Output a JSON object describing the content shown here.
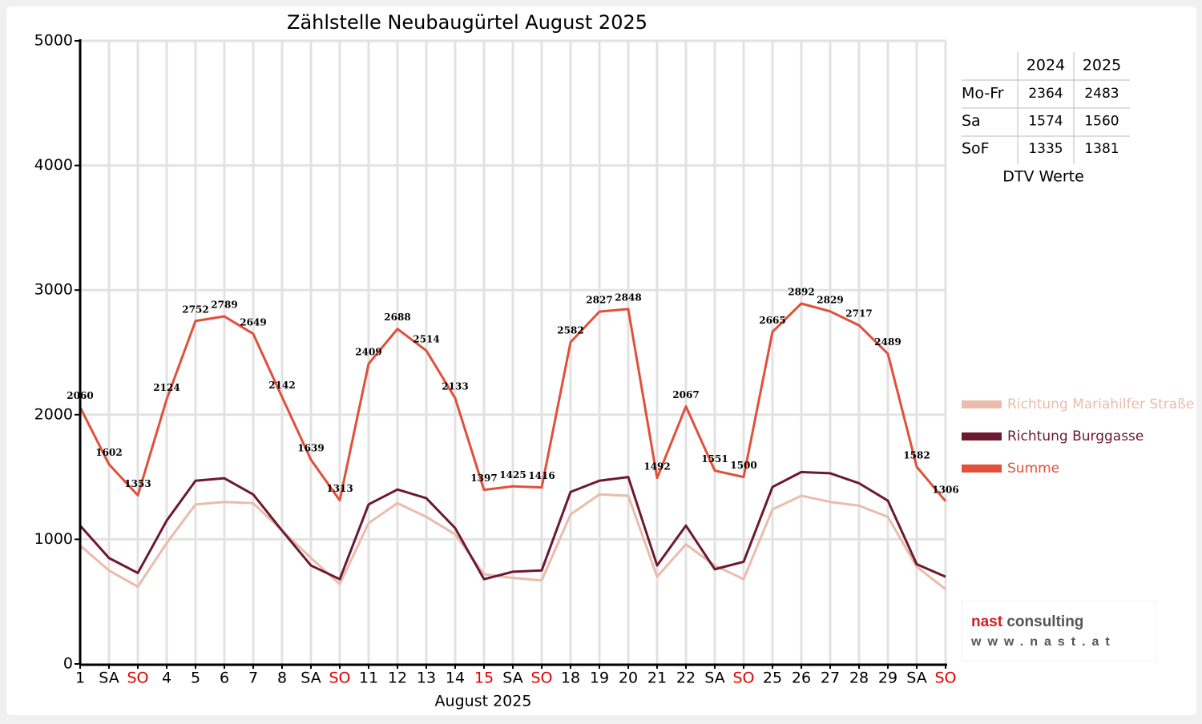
{
  "chart_data": {
    "type": "line",
    "title": "Zählstelle Neubaugürtel August 2025",
    "x_label": "August 2025",
    "categories": [
      "1",
      "SA",
      "SO",
      "4",
      "5",
      "6",
      "7",
      "8",
      "SA",
      "SO",
      "11",
      "12",
      "13",
      "14",
      "15",
      "SA",
      "SO",
      "18",
      "19",
      "20",
      "21",
      "22",
      "SA",
      "SO",
      "25",
      "26",
      "27",
      "28",
      "29",
      "SA",
      "SO"
    ],
    "category_colors": [
      "#000000",
      "#000000",
      "#e00000",
      "#000000",
      "#000000",
      "#000000",
      "#000000",
      "#000000",
      "#000000",
      "#e00000",
      "#000000",
      "#000000",
      "#000000",
      "#000000",
      "#e00000",
      "#000000",
      "#e00000",
      "#000000",
      "#000000",
      "#000000",
      "#000000",
      "#000000",
      "#000000",
      "#e00000",
      "#000000",
      "#000000",
      "#000000",
      "#000000",
      "#000000",
      "#000000",
      "#e00000"
    ],
    "ylim": [
      0,
      5000
    ],
    "yticks": [
      0,
      1000,
      2000,
      3000,
      4000,
      5000
    ],
    "grid": true,
    "legend": "right",
    "series": [
      {
        "name": "Richtung Mariahilfer Straße",
        "color": "#e9bcab",
        "data_labels": false,
        "values": [
          950,
          750,
          620,
          970,
          1280,
          1300,
          1290,
          1070,
          850,
          640,
          1130,
          1290,
          1180,
          1040,
          720,
          690,
          670,
          1200,
          1360,
          1350,
          700,
          960,
          790,
          680,
          1240,
          1350,
          1300,
          1270,
          1180,
          780,
          600
        ]
      },
      {
        "name": "Richtung Burggasse",
        "color": "#6b1a30",
        "data_labels": false,
        "values": [
          1110,
          850,
          730,
          1150,
          1470,
          1490,
          1360,
          1070,
          790,
          680,
          1280,
          1400,
          1330,
          1090,
          680,
          740,
          750,
          1380,
          1470,
          1500,
          790,
          1110,
          760,
          820,
          1420,
          1540,
          1530,
          1450,
          1310,
          800,
          700
        ]
      },
      {
        "name": "Summe",
        "color": "#e0503a",
        "data_labels": true,
        "values": [
          2060,
          1602,
          1353,
          2124,
          2752,
          2789,
          2649,
          2142,
          1639,
          1313,
          2409,
          2688,
          2514,
          2133,
          1397,
          1425,
          1416,
          2582,
          2827,
          2848,
          1492,
          2067,
          1551,
          1500,
          2665,
          2892,
          2829,
          2717,
          2489,
          1582,
          1306
        ]
      }
    ],
    "table": {
      "header": [
        "2024",
        "2025"
      ],
      "rows": [
        [
          "Mo-Fr",
          2364,
          2483
        ],
        [
          "Sa",
          1574,
          1560
        ],
        [
          "SoF",
          1335,
          1381
        ]
      ],
      "caption": "DTV Werte"
    },
    "logo": {
      "brand": "nast",
      "suffix": "consulting",
      "url": "www.nast.at"
    }
  }
}
